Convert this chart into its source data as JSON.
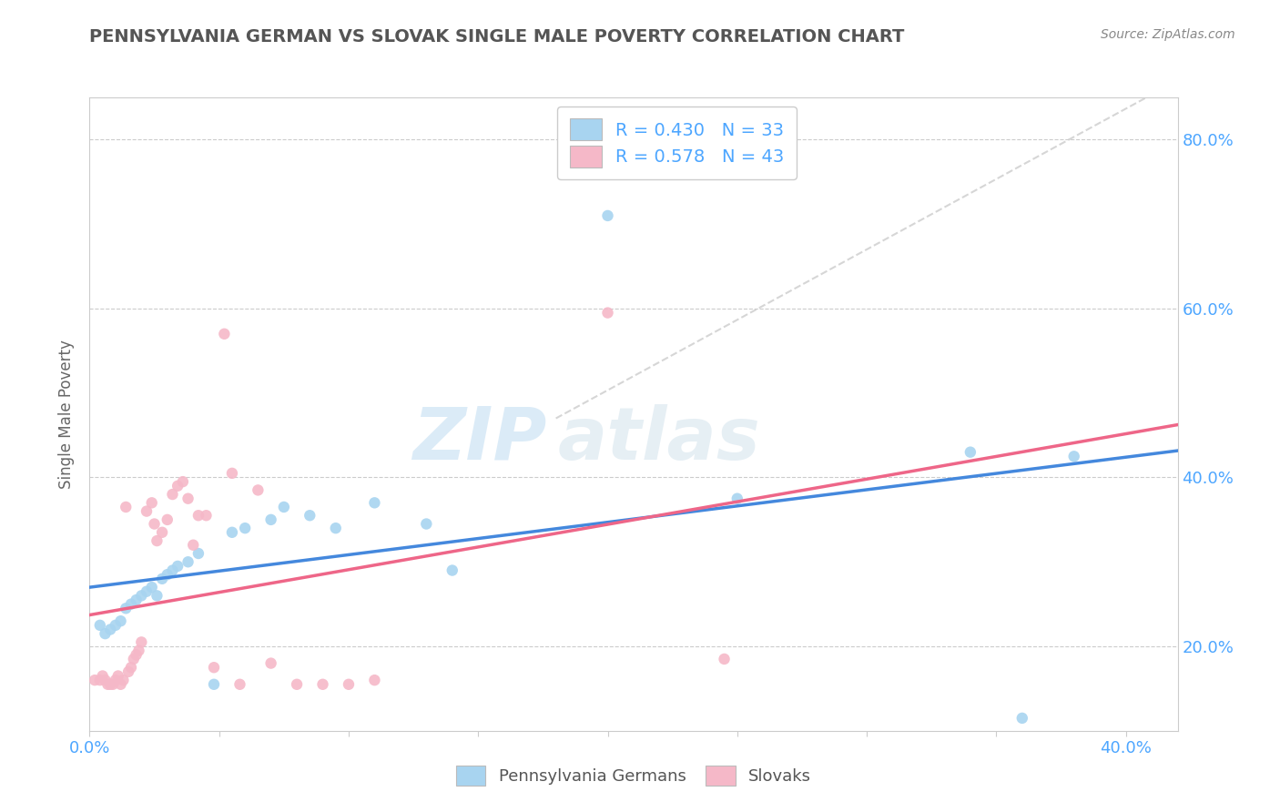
{
  "title": "PENNSYLVANIA GERMAN VS SLOVAK SINGLE MALE POVERTY CORRELATION CHART",
  "source": "Source: ZipAtlas.com",
  "ylabel": "Single Male Poverty",
  "xlim": [
    0.0,
    0.42
  ],
  "ylim": [
    0.1,
    0.85
  ],
  "y_ticks": [
    0.2,
    0.4,
    0.6,
    0.8
  ],
  "y_tick_labels": [
    "20.0%",
    "40.0%",
    "60.0%",
    "80.0%"
  ],
  "x_ticks": [
    0.0,
    0.05,
    0.1,
    0.15,
    0.2,
    0.25,
    0.3,
    0.35,
    0.4
  ],
  "x_tick_labels_show": [
    0.0,
    0.4
  ],
  "watermark_line1": "ZIP",
  "watermark_line2": "atlas",
  "legend_blue_label": "R = 0.430   N = 33",
  "legend_pink_label": "R = 0.578   N = 43",
  "legend_bottom_blue": "Pennsylvania Germans",
  "legend_bottom_pink": "Slovaks",
  "blue_color": "#a8d4f0",
  "pink_color": "#f5b8c8",
  "blue_line_color": "#4488dd",
  "pink_line_color": "#ee6688",
  "diagonal_line_color": "#cccccc",
  "blue_scatter": [
    [
      0.004,
      0.225
    ],
    [
      0.006,
      0.215
    ],
    [
      0.008,
      0.22
    ],
    [
      0.01,
      0.225
    ],
    [
      0.012,
      0.23
    ],
    [
      0.014,
      0.245
    ],
    [
      0.016,
      0.25
    ],
    [
      0.018,
      0.255
    ],
    [
      0.02,
      0.26
    ],
    [
      0.022,
      0.265
    ],
    [
      0.024,
      0.27
    ],
    [
      0.026,
      0.26
    ],
    [
      0.028,
      0.28
    ],
    [
      0.03,
      0.285
    ],
    [
      0.032,
      0.29
    ],
    [
      0.034,
      0.295
    ],
    [
      0.038,
      0.3
    ],
    [
      0.042,
      0.31
    ],
    [
      0.048,
      0.155
    ],
    [
      0.055,
      0.335
    ],
    [
      0.06,
      0.34
    ],
    [
      0.07,
      0.35
    ],
    [
      0.075,
      0.365
    ],
    [
      0.085,
      0.355
    ],
    [
      0.095,
      0.34
    ],
    [
      0.11,
      0.37
    ],
    [
      0.13,
      0.345
    ],
    [
      0.14,
      0.29
    ],
    [
      0.2,
      0.71
    ],
    [
      0.25,
      0.375
    ],
    [
      0.34,
      0.43
    ],
    [
      0.36,
      0.115
    ],
    [
      0.38,
      0.425
    ]
  ],
  "pink_scatter": [
    [
      0.002,
      0.16
    ],
    [
      0.004,
      0.16
    ],
    [
      0.005,
      0.165
    ],
    [
      0.006,
      0.16
    ],
    [
      0.007,
      0.155
    ],
    [
      0.008,
      0.155
    ],
    [
      0.009,
      0.155
    ],
    [
      0.01,
      0.16
    ],
    [
      0.011,
      0.165
    ],
    [
      0.012,
      0.155
    ],
    [
      0.013,
      0.16
    ],
    [
      0.014,
      0.365
    ],
    [
      0.015,
      0.17
    ],
    [
      0.016,
      0.175
    ],
    [
      0.017,
      0.185
    ],
    [
      0.018,
      0.19
    ],
    [
      0.019,
      0.195
    ],
    [
      0.02,
      0.205
    ],
    [
      0.022,
      0.36
    ],
    [
      0.024,
      0.37
    ],
    [
      0.025,
      0.345
    ],
    [
      0.026,
      0.325
    ],
    [
      0.028,
      0.335
    ],
    [
      0.03,
      0.35
    ],
    [
      0.032,
      0.38
    ],
    [
      0.034,
      0.39
    ],
    [
      0.036,
      0.395
    ],
    [
      0.038,
      0.375
    ],
    [
      0.04,
      0.32
    ],
    [
      0.042,
      0.355
    ],
    [
      0.045,
      0.355
    ],
    [
      0.048,
      0.175
    ],
    [
      0.052,
      0.57
    ],
    [
      0.055,
      0.405
    ],
    [
      0.058,
      0.155
    ],
    [
      0.065,
      0.385
    ],
    [
      0.07,
      0.18
    ],
    [
      0.08,
      0.155
    ],
    [
      0.09,
      0.155
    ],
    [
      0.1,
      0.155
    ],
    [
      0.11,
      0.16
    ],
    [
      0.2,
      0.595
    ],
    [
      0.245,
      0.185
    ]
  ]
}
